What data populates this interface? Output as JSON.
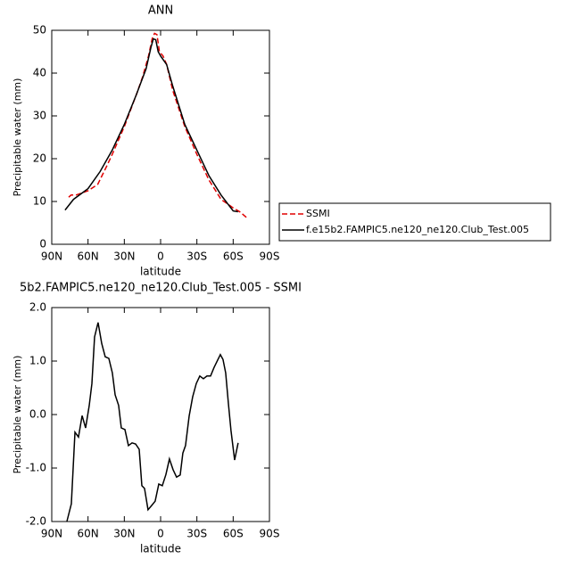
{
  "chart_data": [
    {
      "type": "line",
      "title": "ANN",
      "x_label": "latitude",
      "y_label": "Precipitable water (mm)",
      "xlim": [
        90,
        -90
      ],
      "xticks": [
        {
          "value": 90,
          "label": "90N"
        },
        {
          "value": 60,
          "label": "60N"
        },
        {
          "value": 30,
          "label": "30N"
        },
        0,
        {
          "value": -30,
          "label": "30S"
        },
        {
          "value": -60,
          "label": "60S"
        },
        {
          "value": -90,
          "label": "90S"
        }
      ],
      "ylim": [
        0,
        50
      ],
      "yticks": [
        0,
        10,
        20,
        30,
        40,
        50
      ],
      "series": [
        {
          "name": "SSMI",
          "color": "#e00000",
          "style": "dashed",
          "x": [
            76,
            74,
            70,
            60,
            52,
            45,
            40,
            30,
            20,
            15,
            10,
            7,
            5,
            3,
            1,
            -2,
            -5,
            -10,
            -20,
            -30,
            -40,
            -50,
            -60,
            -66,
            -72
          ],
          "values": [
            11,
            11.5,
            11.5,
            12.5,
            14,
            18,
            21,
            27.5,
            35,
            39,
            44,
            48,
            49.3,
            49,
            45,
            44,
            42,
            36,
            27.5,
            21,
            15,
            10.5,
            8.5,
            7.5,
            6
          ]
        },
        {
          "name": "f.e15b2.FAMPIC5.ne120_ne120.Club_Test.005",
          "color": "#000000",
          "style": "solid",
          "x": [
            79,
            72,
            60,
            50,
            40,
            30,
            20,
            12,
            8,
            6,
            4,
            2,
            0,
            -5,
            -10,
            -20,
            -30,
            -40,
            -50,
            -60,
            -64
          ],
          "values": [
            8,
            10.5,
            13,
            17,
            22,
            28,
            35,
            41,
            46,
            48,
            47.8,
            45,
            44,
            42,
            37,
            28,
            22,
            16,
            11.5,
            7.8,
            7.6
          ]
        }
      ]
    },
    {
      "type": "line",
      "title": "5b2.FAMPIC5.ne120_ne120.Club_Test.005 - SSMI",
      "x_label": "latitude",
      "y_label": "Precipitable water (mm)",
      "xlim": [
        90,
        -90
      ],
      "xticks": [
        {
          "value": 90,
          "label": "90N"
        },
        {
          "value": 60,
          "label": "60N"
        },
        {
          "value": 30,
          "label": "30N"
        },
        0,
        {
          "value": -30,
          "label": "30S"
        },
        {
          "value": -60,
          "label": "60S"
        },
        {
          "value": -90,
          "label": "90S"
        }
      ],
      "ylim": [
        -2,
        2
      ],
      "yticks": [
        {
          "value": -2,
          "label": "-2.0"
        },
        {
          "value": -1,
          "label": "-1.0"
        },
        {
          "value": 0,
          "label": "0.0"
        },
        {
          "value": 1,
          "label": "1.0"
        },
        {
          "value": 2,
          "label": "2.0"
        }
      ],
      "series": [
        {
          "color": "#000000",
          "style": "solid",
          "x": [
            77.5,
            73.8,
            70.8,
            67.9,
            64.9,
            62,
            59,
            56.8,
            54.6,
            51.7,
            48.7,
            45.8,
            42.8,
            39.9,
            37.6,
            34.7,
            32.5,
            29.5,
            26.6,
            23.6,
            20.7,
            17.7,
            15.5,
            13.3,
            10.4,
            7.4,
            4.5,
            1.5,
            -1.4,
            -4.4,
            -7.3,
            -10.3,
            -13.2,
            -16.2,
            -18.4,
            -20.6,
            -23.6,
            -26.5,
            -29.5,
            -32.4,
            -35.4,
            -38.3,
            -41.3,
            -44.2,
            -47.2,
            -49.4,
            -51.6,
            -53.8,
            -56,
            -58.2,
            -61.2,
            -64.1
          ],
          "values": [
            -2.0,
            -1.67,
            -0.33,
            -0.42,
            -0.02,
            -0.25,
            0.17,
            0.58,
            1.45,
            1.72,
            1.33,
            1.08,
            1.05,
            0.78,
            0.37,
            0.17,
            -0.25,
            -0.28,
            -0.58,
            -0.53,
            -0.55,
            -0.65,
            -1.33,
            -1.38,
            -1.78,
            -1.7,
            -1.62,
            -1.3,
            -1.33,
            -1.12,
            -0.83,
            -1.03,
            -1.17,
            -1.13,
            -0.72,
            -0.58,
            -0.03,
            0.33,
            0.58,
            0.72,
            0.67,
            0.72,
            0.72,
            0.88,
            1.02,
            1.12,
            1.03,
            0.78,
            0.22,
            -0.3,
            -0.85,
            -0.53
          ]
        }
      ]
    }
  ]
}
